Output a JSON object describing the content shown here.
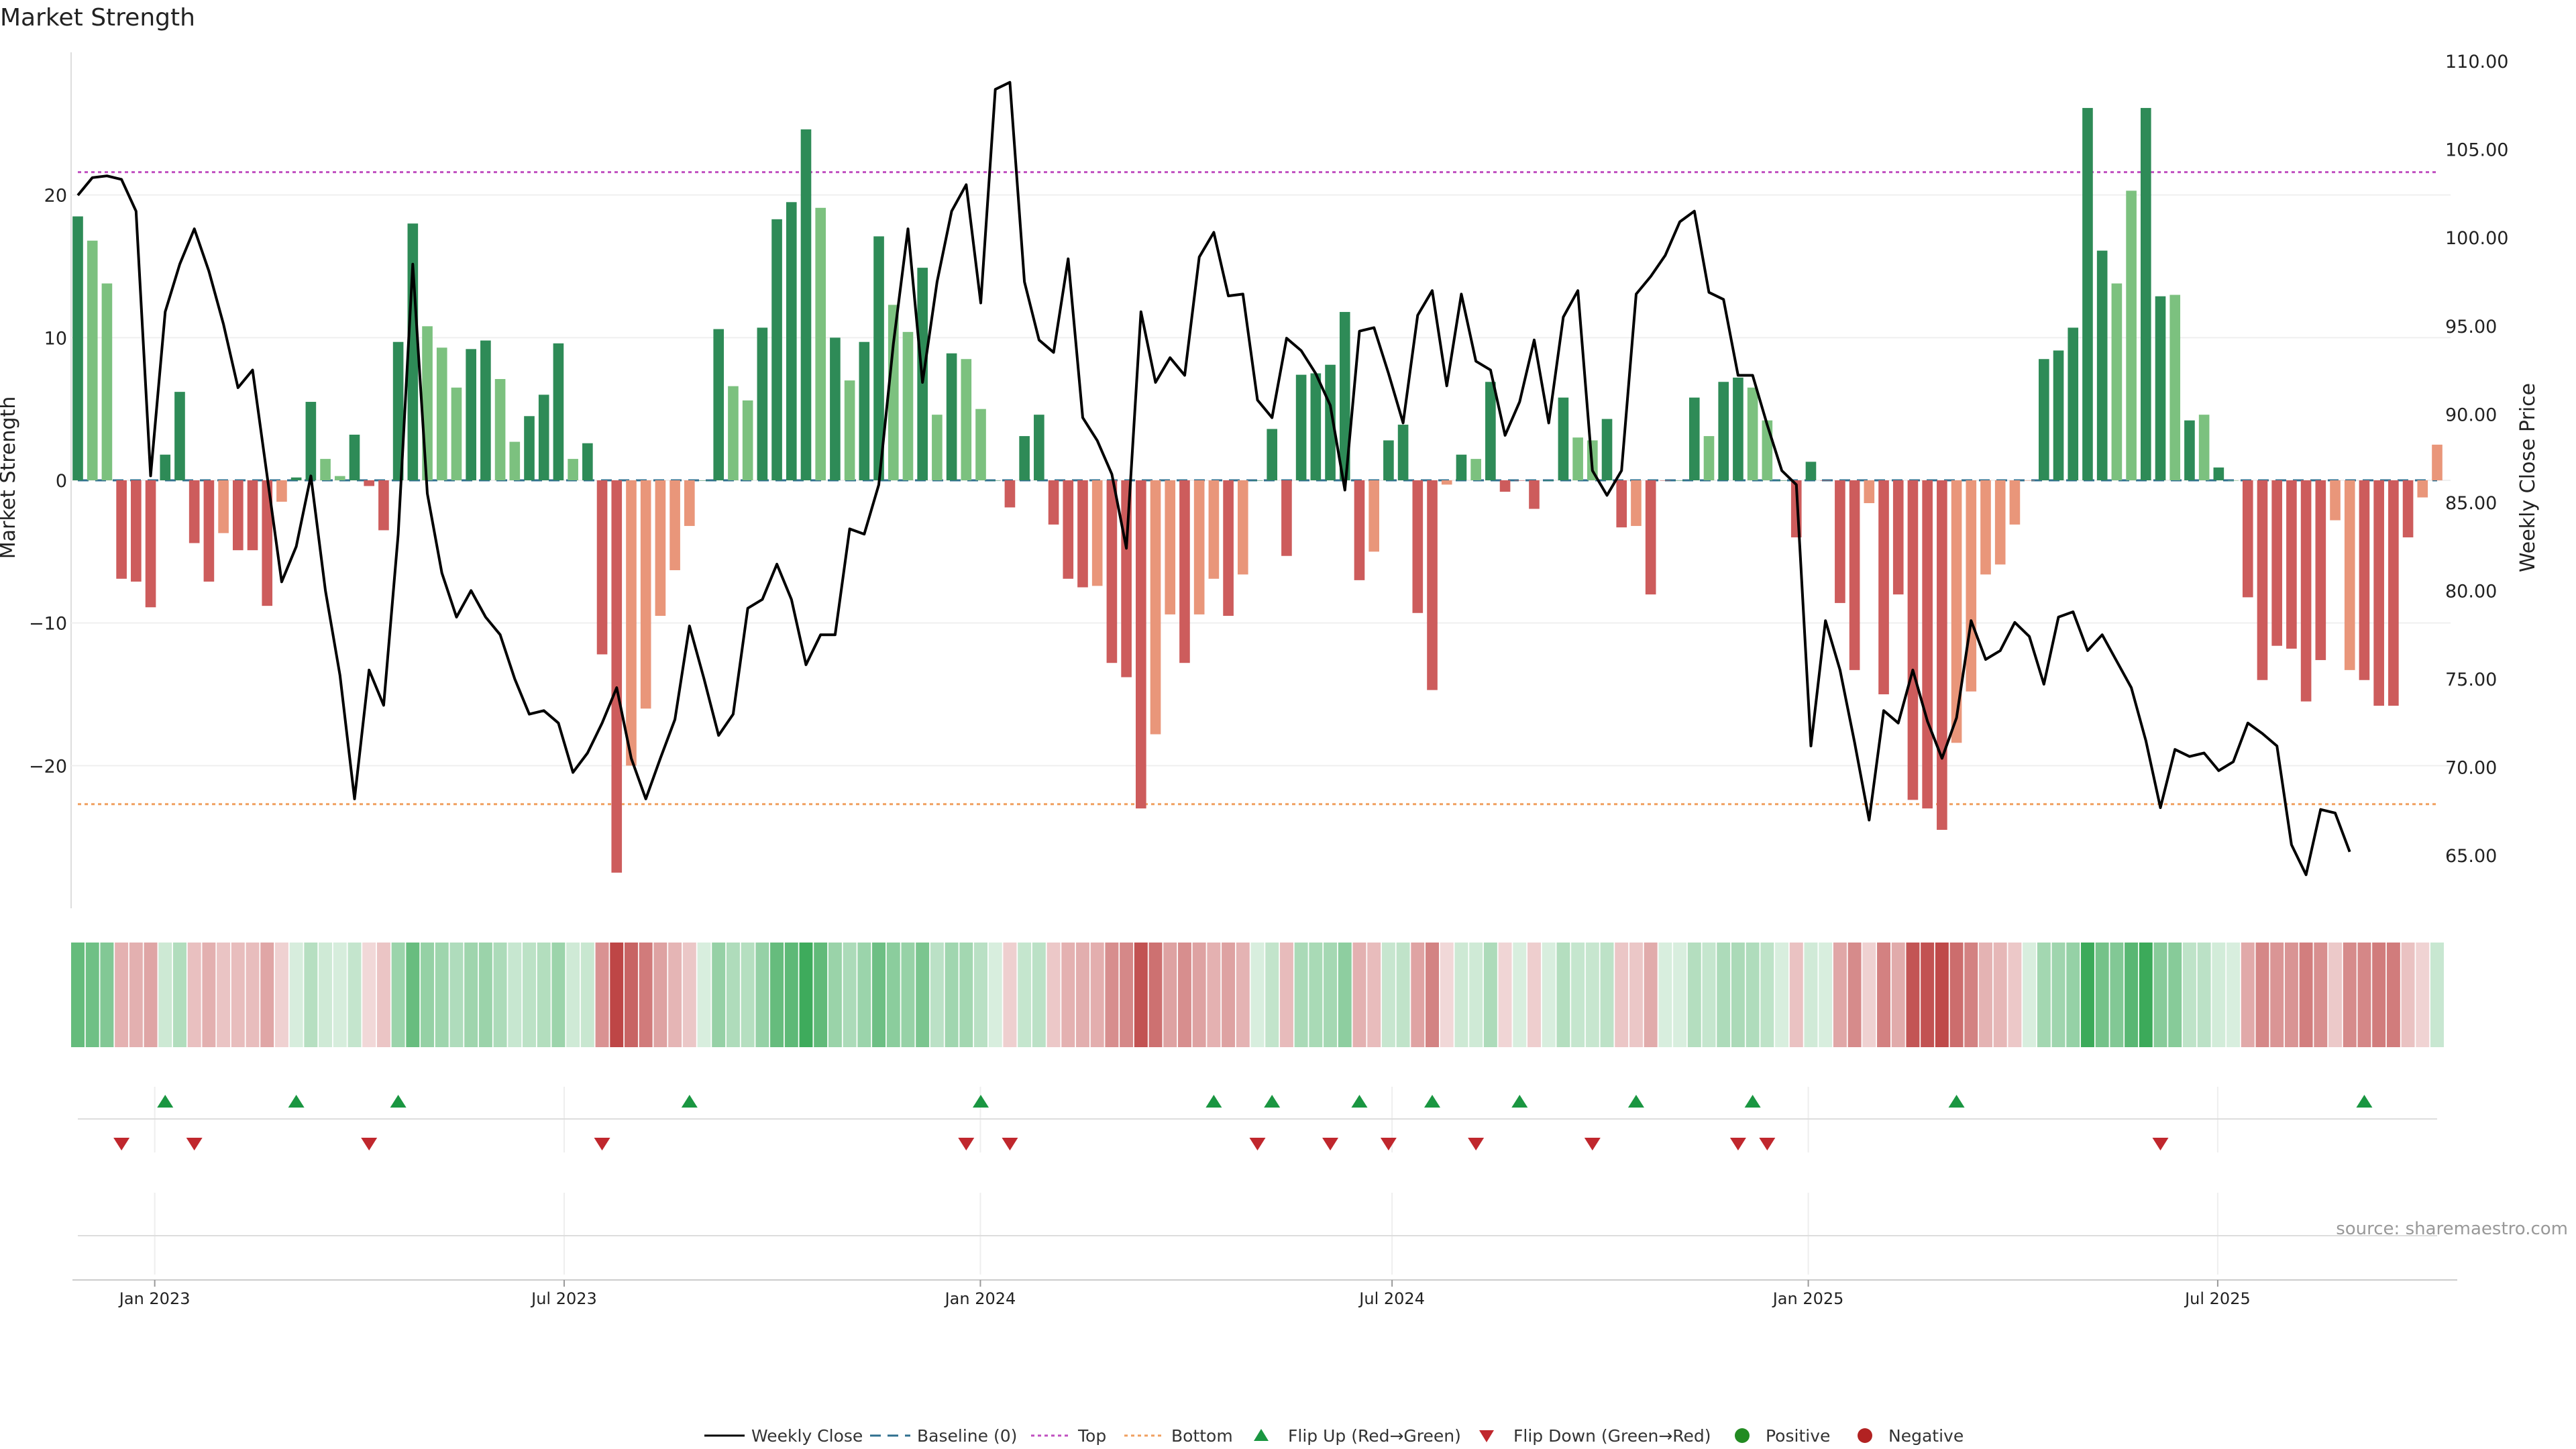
{
  "chart_data": {
    "type": "bar",
    "title": "Market Strength",
    "ylabel_left": "Market Strength",
    "ylabel_right": "Weekly Close Price",
    "ylim_left": [
      -30,
      30
    ],
    "ylim_right": [
      62.0,
      110.5
    ],
    "yticks_left": [
      20,
      10,
      0,
      -10,
      -20
    ],
    "yticks_right": [
      65.0,
      70.0,
      75.0,
      80.0,
      85.0,
      90.0,
      95.0,
      100.0,
      105.0,
      110.0
    ],
    "ytick_labels_left": [
      "20",
      "10",
      "0",
      "−10",
      "−20"
    ],
    "ytick_labels_right": [
      "65.00",
      "70.00",
      "75.00",
      "80.00",
      "85.00",
      "90.00",
      "95.00",
      "100.00",
      "105.00",
      "110.00"
    ],
    "x_start_date": "2022-11-28",
    "x_end_date": "2025-10-06",
    "x_ticks": [
      {
        "date": "2023-01-01",
        "label": "Jan 2023"
      },
      {
        "date": "2023-07-01",
        "label": "Jul 2023"
      },
      {
        "date": "2024-01-01",
        "label": "Jan 2024"
      },
      {
        "date": "2024-07-01",
        "label": "Jul 2024"
      },
      {
        "date": "2025-01-01",
        "label": "Jan 2025"
      },
      {
        "date": "2025-07-01",
        "label": "Jul 2025"
      }
    ],
    "top_level": 21.6,
    "bottom_level": -22.7,
    "strength": [
      18.5,
      16.8,
      13.8,
      -6.9,
      -7.1,
      -8.9,
      1.8,
      6.2,
      -4.4,
      -7.1,
      -3.7,
      -4.9,
      -4.9,
      -8.8,
      -1.5,
      0.2,
      5.5,
      1.5,
      0.3,
      3.2,
      -0.4,
      -3.5,
      9.7,
      18.0,
      10.8,
      9.3,
      6.5,
      9.2,
      9.8,
      7.1,
      2.7,
      4.5,
      6.0,
      9.6,
      1.5,
      2.6,
      -12.2,
      -27.5,
      -20.0,
      -16.0,
      -9.5,
      -6.3,
      -3.2,
      0.0,
      10.6,
      6.6,
      5.6,
      10.7,
      18.3,
      19.5,
      24.6,
      19.1,
      10.0,
      7.0,
      9.7,
      17.1,
      12.3,
      10.4,
      14.9,
      4.6,
      8.9,
      8.5,
      5.0,
      0.0,
      -1.9,
      3.1,
      4.6,
      -3.1,
      -6.9,
      -7.5,
      -7.4,
      -12.8,
      -13.8,
      -23.0,
      -17.8,
      -9.4,
      -12.8,
      -9.4,
      -6.9,
      -9.5,
      -6.6,
      0.0,
      3.6,
      -5.3,
      7.4,
      7.5,
      8.1,
      11.8,
      -7.0,
      -5.0,
      2.8,
      3.9,
      -9.3,
      -14.7,
      -0.3,
      1.8,
      1.5,
      6.9,
      -0.8,
      0.0,
      -2.0,
      0.0,
      5.8,
      3.0,
      2.8,
      4.3,
      -3.3,
      -3.2,
      -8.0,
      0.0,
      0.0,
      5.8,
      3.1,
      6.9,
      7.2,
      6.5,
      4.2,
      0.0,
      -4.0,
      1.3,
      0.0,
      -8.6,
      -13.3,
      -1.6,
      -15.0,
      -8.0,
      -22.4,
      -23.0,
      -24.5,
      -18.4,
      -14.8,
      -6.6,
      -5.9,
      -3.1,
      0.0,
      8.5,
      9.1,
      10.7,
      26.1,
      16.1,
      13.8,
      20.3,
      26.1,
      12.9,
      13.0,
      4.2,
      4.6,
      0.9,
      0.0,
      -8.2,
      -14.0,
      -11.6,
      -11.8,
      -15.5,
      -12.6,
      -2.8,
      -13.3,
      -14.0,
      -15.8,
      -15.8,
      -4.0,
      -1.2,
      2.5
    ],
    "bar_colors": [
      "#2e8b57",
      "#7cc17f",
      "#7cc17f",
      "#cd5c5c",
      "#cd5c5c",
      "#cd5c5c",
      "#2e8b57",
      "#2e8b57",
      "#cd5c5c",
      "#cd5c5c",
      "#e9967a",
      "#cd5c5c",
      "#cd5c5c",
      "#cd5c5c",
      "#e9967a",
      "#2e8b57",
      "#2e8b57",
      "#7cc17f",
      "#7cc17f",
      "#2e8b57",
      "#cd5c5c",
      "#cd5c5c",
      "#2e8b57",
      "#2e8b57",
      "#7cc17f",
      "#7cc17f",
      "#7cc17f",
      "#2e8b57",
      "#2e8b57",
      "#7cc17f",
      "#7cc17f",
      "#2e8b57",
      "#2e8b57",
      "#2e8b57",
      "#7cc17f",
      "#2e8b57",
      "#cd5c5c",
      "#cd5c5c",
      "#e9967a",
      "#e9967a",
      "#e9967a",
      "#e9967a",
      "#e9967a",
      "#2e8b57",
      "#2e8b57",
      "#7cc17f",
      "#7cc17f",
      "#2e8b57",
      "#2e8b57",
      "#2e8b57",
      "#2e8b57",
      "#7cc17f",
      "#2e8b57",
      "#7cc17f",
      "#2e8b57",
      "#2e8b57",
      "#7cc17f",
      "#7cc17f",
      "#2e8b57",
      "#7cc17f",
      "#2e8b57",
      "#7cc17f",
      "#7cc17f",
      "#2e8b57",
      "#cd5c5c",
      "#2e8b57",
      "#2e8b57",
      "#cd5c5c",
      "#cd5c5c",
      "#cd5c5c",
      "#e9967a",
      "#cd5c5c",
      "#cd5c5c",
      "#cd5c5c",
      "#e9967a",
      "#e9967a",
      "#cd5c5c",
      "#e9967a",
      "#e9967a",
      "#cd5c5c",
      "#e9967a",
      "#2e8b57",
      "#2e8b57",
      "#cd5c5c",
      "#2e8b57",
      "#2e8b57",
      "#2e8b57",
      "#2e8b57",
      "#cd5c5c",
      "#e9967a",
      "#2e8b57",
      "#2e8b57",
      "#cd5c5c",
      "#cd5c5c",
      "#e9967a",
      "#2e8b57",
      "#7cc17f",
      "#2e8b57",
      "#cd5c5c",
      "#cd5c5c",
      "#cd5c5c",
      "#2e8b57",
      "#2e8b57",
      "#7cc17f",
      "#7cc17f",
      "#2e8b57",
      "#cd5c5c",
      "#e9967a",
      "#cd5c5c",
      "#cd5c5c",
      "#2e8b57",
      "#2e8b57",
      "#7cc17f",
      "#2e8b57",
      "#2e8b57",
      "#7cc17f",
      "#7cc17f",
      "#2e8b57",
      "#cd5c5c",
      "#2e8b57",
      "#cd5c5c",
      "#cd5c5c",
      "#cd5c5c",
      "#e9967a",
      "#cd5c5c",
      "#cd5c5c",
      "#cd5c5c",
      "#cd5c5c",
      "#cd5c5c",
      "#e9967a",
      "#e9967a",
      "#e9967a",
      "#e9967a",
      "#e9967a",
      "#e9967a",
      "#2e8b57",
      "#2e8b57",
      "#2e8b57",
      "#2e8b57",
      "#2e8b57",
      "#7cc17f",
      "#7cc17f",
      "#2e8b57",
      "#2e8b57",
      "#7cc17f",
      "#2e8b57",
      "#7cc17f",
      "#2e8b57",
      "#7cc17f",
      "#cd5c5c",
      "#cd5c5c",
      "#cd5c5c",
      "#cd5c5c",
      "#cd5c5c",
      "#cd5c5c",
      "#e9967a",
      "#e9967a",
      "#cd5c5c",
      "#cd5c5c",
      "#cd5c5c",
      "#cd5c5c",
      "#e9967a",
      "#e9967a",
      "#2e8b57"
    ],
    "price": [
      102.4,
      103.4,
      103.5,
      103.3,
      101.5,
      86.5,
      95.8,
      98.5,
      100.5,
      98.1,
      95.1,
      91.5,
      92.5,
      86.5,
      80.5,
      82.5,
      86.5,
      80.0,
      75.2,
      68.2,
      75.5,
      73.5,
      83.2,
      98.5,
      85.5,
      81.0,
      78.5,
      80.0,
      78.5,
      77.5,
      75.0,
      73.0,
      73.2,
      72.5,
      69.7,
      70.8,
      72.5,
      74.5,
      70.5,
      68.2,
      70.5,
      72.7,
      78.0,
      75.0,
      71.8,
      73.0,
      79.0,
      79.5,
      81.5,
      79.5,
      75.8,
      77.5,
      77.5,
      83.5,
      83.2,
      86.0,
      94.0,
      100.5,
      91.8,
      97.5,
      101.5,
      103.0,
      96.3,
      108.4,
      108.8,
      97.5,
      94.2,
      93.5,
      98.8,
      89.8,
      88.5,
      86.6,
      82.4,
      95.8,
      91.8,
      93.2,
      92.2,
      98.9,
      100.3,
      96.7,
      96.8,
      90.8,
      89.8,
      94.3,
      93.6,
      92.3,
      90.5,
      85.7,
      94.7,
      94.9,
      92.3,
      89.5,
      95.6,
      97.0,
      91.6,
      96.8,
      93.0,
      92.5,
      88.8,
      90.7,
      94.2,
      89.5,
      95.5,
      97.0,
      86.8,
      85.4,
      86.8,
      96.8,
      97.8,
      99.0,
      100.9,
      101.5,
      96.9,
      96.5,
      92.2,
      92.2,
      89.4,
      86.8,
      86.0,
      71.2,
      78.3,
      75.5,
      71.4,
      67.0,
      73.2,
      72.5,
      75.5,
      72.6,
      70.5,
      72.8,
      78.3,
      76.1,
      76.6,
      78.2,
      77.4,
      74.7,
      78.5,
      78.8,
      76.6,
      77.5,
      76.0,
      74.5,
      71.5,
      67.7,
      71.0,
      70.6,
      70.8,
      69.8,
      70.3,
      72.5,
      71.9,
      71.2,
      65.6,
      63.9,
      67.6,
      67.4,
      65.2
    ],
    "flip_up_weeks": [
      6,
      15,
      22,
      42,
      62,
      78,
      82,
      88,
      93,
      99,
      107,
      115,
      129,
      157
    ],
    "flip_down_weeks": [
      3,
      8,
      20,
      36,
      61,
      64,
      81,
      86,
      90,
      96,
      104,
      114,
      116,
      143
    ],
    "legend_position": "bottom-center",
    "annotation": "source: sharemaestro.com"
  },
  "legend": {
    "weekly_close": "Weekly Close",
    "baseline": "Baseline (0)",
    "top": "Top",
    "bottom": "Bottom",
    "flip_up": "Flip Up (Red→Green)",
    "flip_down": "Flip Down (Green→Red)",
    "positive": "Positive",
    "negative": "Negative"
  },
  "colors": {
    "dark_green": "#2e8b57",
    "light_green": "#7cc17f",
    "dark_red": "#cd5c5c",
    "light_red": "#e9967a",
    "top_line": "#c050c0",
    "bottom_line": "#f0a060",
    "baseline": "#2f6f8f",
    "flip_up_marker": "#1a9641",
    "flip_down_marker": "#c0272d",
    "positive_dot": "#228b22",
    "negative_dot": "#b22222",
    "price_line": "#000000"
  }
}
